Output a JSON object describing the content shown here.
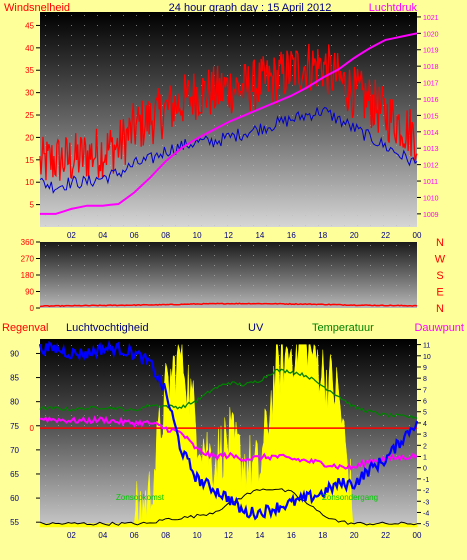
{
  "header": {
    "title": "24 hour graph day : 15 April 2012",
    "left_label": "Windsnelheid",
    "right_label": "Luchtdruk"
  },
  "colors": {
    "background": "#ffff99",
    "wind_gust": "#ff0000",
    "wind_avg": "#0000cc",
    "pressure": "#ff00ff",
    "direction": "#ff0000",
    "temperature": "#008000",
    "humidity": "#0000ff",
    "dewpoint": "#ff00ff",
    "uv": "#ffff00",
    "solar": "#000000",
    "rain_line": "#ff0000",
    "dark_labels": "#000080"
  },
  "chart_data": [
    {
      "type": "line",
      "name": "wind-pressure",
      "x_ticks": [
        "02",
        "04",
        "06",
        "08",
        "10",
        "12",
        "14",
        "16",
        "18",
        "20",
        "22",
        "00"
      ],
      "left_axis": {
        "label": "Windsnelheid",
        "ticks": [
          5,
          10,
          15,
          20,
          25,
          30,
          35,
          40,
          45
        ],
        "range": [
          0,
          48
        ]
      },
      "right_axis": {
        "label": "Luchtdruk",
        "ticks": [
          1009,
          1010,
          1011,
          1012,
          1013,
          1014,
          1015,
          1016,
          1017,
          1018,
          1019,
          1020,
          1021
        ],
        "range": [
          1008.2,
          1021.3
        ]
      },
      "x": [
        0,
        1,
        2,
        3,
        4,
        5,
        6,
        7,
        8,
        9,
        10,
        11,
        12,
        13,
        14,
        15,
        16,
        17,
        18,
        19,
        20,
        21,
        22,
        23,
        24
      ],
      "series": [
        {
          "key": "gust",
          "axis": "left",
          "values": [
            14,
            15,
            15,
            16,
            17,
            18,
            22,
            24,
            26,
            28,
            30,
            30,
            31,
            31,
            32,
            33,
            35,
            36,
            36,
            33,
            30,
            28,
            25,
            23,
            20
          ]
        },
        {
          "key": "avg",
          "axis": "left",
          "values": [
            10,
            9,
            10,
            10,
            11,
            12,
            14,
            15,
            17,
            18,
            19,
            19,
            20,
            21,
            22,
            23,
            24,
            25,
            26,
            24,
            22,
            20,
            18,
            16,
            14
          ]
        },
        {
          "key": "pressure",
          "axis": "right",
          "values": [
            1009.0,
            1009.0,
            1009.3,
            1009.5,
            1009.5,
            1009.6,
            1010.3,
            1011.2,
            1012.2,
            1013.0,
            1013.6,
            1014.1,
            1014.6,
            1015.0,
            1015.4,
            1015.8,
            1016.2,
            1016.7,
            1017.3,
            1017.8,
            1018.5,
            1019.1,
            1019.6,
            1019.8,
            1020.0
          ]
        }
      ]
    },
    {
      "type": "line",
      "name": "wind-direction",
      "x_ticks": [
        "02",
        "04",
        "06",
        "08",
        "10",
        "12",
        "14",
        "16",
        "18",
        "20",
        "22",
        "00"
      ],
      "left_axis": {
        "ticks": [
          0,
          90,
          180,
          270,
          360
        ],
        "range": [
          0,
          360
        ]
      },
      "right_labels": [
        "N",
        "W",
        "S",
        "E",
        "N"
      ],
      "x": [
        0,
        2,
        4,
        6,
        8,
        10,
        12,
        14,
        16,
        18,
        20,
        22,
        24
      ],
      "series": [
        {
          "key": "direction",
          "values": [
            10,
            12,
            14,
            16,
            18,
            22,
            24,
            24,
            22,
            20,
            16,
            14,
            12
          ]
        }
      ]
    },
    {
      "type": "line",
      "name": "humidity-temperature",
      "header_labels": {
        "rain": "Regenval",
        "humidity": "Luchtvochtigheid",
        "uv": "UV",
        "temperature": "Temperatuur",
        "dewpoint": "Dauwpunt"
      },
      "x_ticks": [
        "02",
        "04",
        "06",
        "08",
        "10",
        "12",
        "14",
        "16",
        "18",
        "20",
        "22",
        "00"
      ],
      "left_axis": {
        "ticks": [
          55,
          60,
          65,
          70,
          75,
          80,
          85,
          90
        ],
        "range": [
          54,
          93
        ]
      },
      "rain_axis": {
        "ticks": [
          0
        ],
        "value": 0
      },
      "right_axis": {
        "ticks": [
          -5,
          -4,
          -3,
          -2,
          -1,
          0,
          1,
          2,
          3,
          4,
          5,
          6,
          7,
          8,
          9,
          10,
          11
        ],
        "range": [
          -5.3,
          11.5
        ]
      },
      "annotations": {
        "sunrise": "Zonsopkomst",
        "sunset": "Zonsondergang"
      },
      "x": [
        0,
        1,
        2,
        3,
        4,
        5,
        6,
        7,
        8,
        9,
        10,
        11,
        12,
        13,
        14,
        15,
        16,
        17,
        18,
        19,
        20,
        21,
        22,
        23,
        24
      ],
      "series": [
        {
          "key": "humidity",
          "axis": "left",
          "values": [
            91,
            91,
            90,
            90,
            91,
            91,
            90,
            88,
            82,
            70,
            64,
            62,
            60,
            57,
            57,
            58,
            59,
            60,
            61,
            63,
            63,
            66,
            68,
            72,
            76
          ]
        },
        {
          "key": "temperature",
          "axis": "right",
          "values": [
            5.3,
            5.3,
            5.2,
            5.3,
            5.4,
            5.3,
            5.1,
            5.6,
            5.5,
            5.4,
            6.0,
            7.0,
            7.6,
            7.4,
            7.8,
            8.7,
            8.6,
            8.2,
            7.3,
            6.4,
            5.4,
            5.0,
            4.7,
            4.6,
            4.5
          ]
        },
        {
          "key": "dewpoint",
          "axis": "right",
          "values": [
            4.4,
            4.3,
            4.2,
            4.2,
            4.3,
            4.1,
            4.0,
            4.0,
            3.5,
            3.1,
            1.6,
            1.0,
            1.1,
            0.8,
            0.9,
            1.0,
            0.8,
            0.6,
            0.4,
            0.1,
            0.0,
            0.6,
            0.8,
            0.9,
            1.1
          ]
        },
        {
          "key": "uv",
          "axis": "right",
          "values": [
            -5,
            -5,
            -5,
            -5,
            -5,
            -5,
            -5,
            -3,
            6,
            10,
            3,
            0,
            2,
            0,
            -1,
            8,
            10,
            11,
            8,
            6,
            -5,
            -5,
            -5,
            -5,
            -5
          ]
        },
        {
          "key": "solar",
          "axis": "right",
          "values": [
            -5,
            -5,
            -5,
            -5,
            -5,
            -5,
            -5,
            -5,
            -4.6,
            -4.5,
            -4.3,
            -4,
            -3.3,
            -2.5,
            -1.9,
            -1.9,
            -2.2,
            -3.2,
            -4.2,
            -4.8,
            -5,
            -5,
            -5,
            -5,
            -5
          ]
        }
      ]
    }
  ]
}
